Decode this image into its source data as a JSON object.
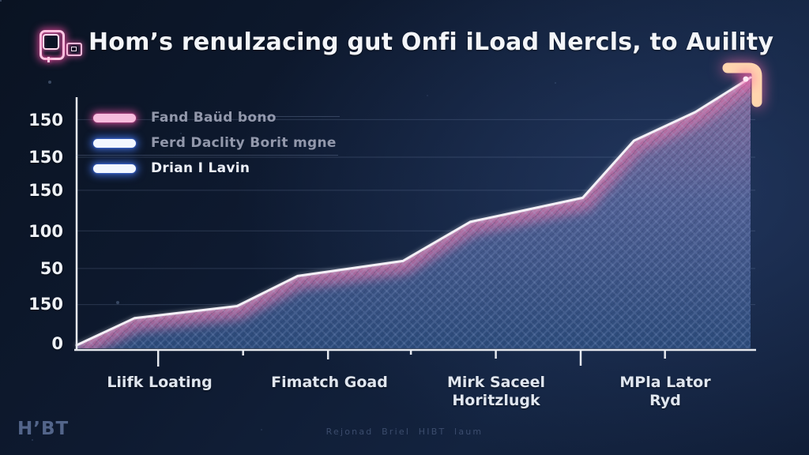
{
  "header": {
    "title": "Hom’s renulzacing gut Onfi iLoad Nercls, to Auility",
    "logo_icon": "neon-price-tag-icon",
    "corner_icon": "up-right-arrow-icon"
  },
  "legend": {
    "items": [
      {
        "label": "Fand Baüd bono",
        "swatch_color": "#f6bcdd",
        "glow_color": "#e0519e",
        "label_color": "#9298ab"
      },
      {
        "label": "Ferd Daclity Borit mgne",
        "swatch_color": "#f3f7ff",
        "glow_color": "#4a7dff",
        "label_color": "#9298ab"
      },
      {
        "label": "Drian I Lavin",
        "swatch_color": "#f3f7ff",
        "glow_color": "#4a7dff",
        "label_color": "#edf1fa"
      }
    ]
  },
  "chart_data": {
    "type": "area",
    "title": "Hom’s renulzacing gut Onfi iLoad Nercls, to Auility",
    "legend_entries": [
      "Fand Baüd bono",
      "Ferd Daclity Borit mgne",
      "Drian I Lavin"
    ],
    "y_axis": {
      "tick_labels": [
        "150",
        "150",
        "150",
        "100",
        "50",
        "150",
        "0"
      ],
      "grid_units": [
        150,
        125,
        103,
        76,
        51,
        27
      ],
      "range": [
        0,
        180
      ],
      "grid": "on"
    },
    "x_axis": {
      "labels": [
        {
          "line1": "Liifk Loating",
          "line2": ""
        },
        {
          "line1": "Fimatch Goad",
          "line2": ""
        },
        {
          "line1": "Mirk Saceel",
          "line2": "Horitzlugk"
        },
        {
          "line1": "MPla Lator",
          "line2": "Ryd"
        }
      ],
      "ticks": [
        {
          "f": 0.121,
          "len": 20
        },
        {
          "f": 0.247,
          "len": 6
        },
        {
          "f": 0.373,
          "len": 11
        },
        {
          "f": 0.496,
          "len": 5
        },
        {
          "f": 0.622,
          "len": 10
        },
        {
          "f": 0.748,
          "len": 19
        },
        {
          "f": 0.873,
          "len": 10
        }
      ]
    },
    "series": [
      {
        "name": "Fand Baüd bono",
        "points": [
          [
            0.0,
            0
          ],
          [
            0.086,
            18
          ],
          [
            0.238,
            26
          ],
          [
            0.328,
            46
          ],
          [
            0.484,
            56
          ],
          [
            0.584,
            82
          ],
          [
            0.751,
            98
          ],
          [
            0.827,
            136
          ],
          [
            0.918,
            155
          ],
          [
            1.0,
            178
          ]
        ]
      }
    ],
    "colors": {
      "line": "#f4f0f7",
      "edge_glow": "#c96da4",
      "area_top": "#8a6b9d",
      "area_mid": "#4f5e92",
      "area_bottom": "#2b4a79",
      "axis": "#e6e9ef",
      "grid": "#93a6c9",
      "end_dot": "#ff5ca8",
      "arrow": "#ffd5ae"
    },
    "legend_position": "top-left"
  },
  "footer": {
    "brand": "H’BT",
    "caption": "Rejonad Briel HIBT laum"
  }
}
